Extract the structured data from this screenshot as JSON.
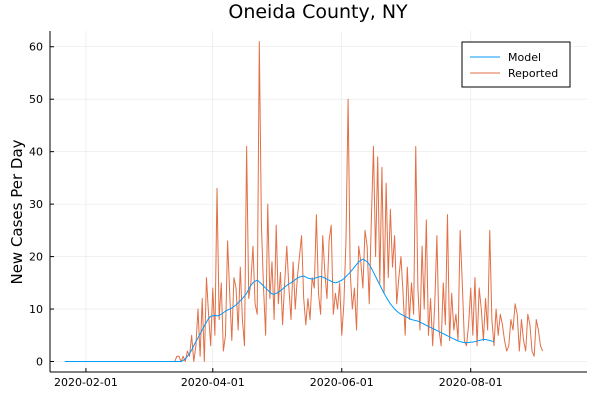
{
  "chart_data": {
    "type": "line",
    "title": "Oneida County, NY",
    "xlabel": "",
    "ylabel": "New Cases Per Day",
    "x_start": "2020-01-22",
    "xlim": [
      "2020-01-15",
      "2020-09-25"
    ],
    "ylim": [
      -2,
      63
    ],
    "grid": true,
    "legend_position": "top-right",
    "x_ticks": [
      {
        "date": "2020-02-01",
        "label": "2020-02-01"
      },
      {
        "date": "2020-04-01",
        "label": "2020-04-01"
      },
      {
        "date": "2020-06-01",
        "label": "2020-06-01"
      },
      {
        "date": "2020-08-01",
        "label": "2020-08-01"
      }
    ],
    "y_ticks": [
      0,
      10,
      20,
      30,
      40,
      50,
      60
    ],
    "series": [
      {
        "name": "Model",
        "color": "#009AFA",
        "values": [
          0,
          0,
          0,
          0,
          0,
          0,
          0,
          0,
          0,
          0,
          0,
          0,
          0,
          0,
          0,
          0,
          0,
          0,
          0,
          0,
          0,
          0,
          0,
          0,
          0,
          0,
          0,
          0,
          0,
          0,
          0,
          0,
          0,
          0,
          0,
          0,
          0,
          0,
          0,
          0,
          0,
          0,
          0,
          0,
          0,
          0,
          0,
          0,
          0,
          0,
          0,
          0,
          0,
          0,
          0,
          0,
          0.2,
          0.5,
          1,
          1.5,
          2.2,
          3,
          3.8,
          4.5,
          5.3,
          6,
          6.8,
          7.5,
          8.2,
          8.6,
          8.7,
          8.8,
          8.7,
          8.8,
          9,
          9.3,
          9.6,
          9.8,
          10,
          10.2,
          10.5,
          10.8,
          11.2,
          11.6,
          12,
          12.5,
          13,
          13.8,
          14.5,
          15,
          15.3,
          15.5,
          15.2,
          14.8,
          14.4,
          14,
          13.6,
          13.2,
          12.9,
          12.8,
          13,
          13.2,
          13.5,
          13.8,
          14.2,
          14.5,
          14.8,
          15,
          15.3,
          15.6,
          15.9,
          16.1,
          16.2,
          16.3,
          16.1,
          15.9,
          15.8,
          15.7,
          15.8,
          16,
          16.1,
          16.2,
          16.1,
          15.9,
          15.7,
          15.5,
          15.3,
          15.1,
          15,
          15.1,
          15.3,
          15.5,
          15.8,
          16.2,
          16.6,
          17,
          17.5,
          18,
          18.5,
          19,
          19.3,
          19.5,
          19.3,
          19,
          18.5,
          17.8,
          17,
          16.2,
          15.4,
          14.6,
          13.8,
          13,
          12.3,
          11.6,
          11,
          10.5,
          10,
          9.6,
          9.3,
          9,
          8.8,
          8.6,
          8.4,
          8.2,
          8,
          7.9,
          7.8,
          7.7,
          7.5,
          7.3,
          7.1,
          6.9,
          6.7,
          6.5,
          6.3,
          6.1,
          5.9,
          5.7,
          5.5,
          5.3,
          5.1,
          4.9,
          4.7,
          4.5,
          4.3,
          4.1,
          3.9,
          3.8,
          3.7,
          3.6,
          3.6,
          3.6,
          3.7,
          3.7,
          3.8,
          3.9,
          4,
          4.1,
          4.2,
          4.2,
          4.1,
          4,
          3.9,
          3.8
        ]
      },
      {
        "name": "Reported",
        "color": "#E26F46",
        "values": [
          0,
          0,
          0,
          0,
          0,
          0,
          0,
          0,
          0,
          0,
          0,
          0,
          0,
          0,
          0,
          0,
          0,
          0,
          0,
          0,
          0,
          0,
          0,
          0,
          0,
          0,
          0,
          0,
          0,
          0,
          0,
          0,
          0,
          0,
          0,
          0,
          0,
          0,
          0,
          0,
          0,
          0,
          0,
          0,
          0,
          0,
          0,
          0,
          0,
          0,
          0,
          0,
          0,
          1,
          1,
          0,
          1,
          0,
          2,
          1,
          5,
          0,
          3,
          10,
          1,
          12,
          0,
          16,
          9,
          3,
          14,
          5,
          33,
          8,
          15,
          2,
          5,
          23,
          13,
          4,
          16,
          14,
          6,
          18,
          8,
          3,
          41,
          12,
          15,
          22,
          11,
          9,
          61,
          26,
          14,
          5,
          30,
          12,
          19,
          8,
          26,
          11,
          17,
          7,
          15,
          22,
          14,
          8,
          19,
          10,
          16,
          20,
          24,
          12,
          7,
          12,
          8,
          16,
          14,
          28,
          13,
          9,
          24,
          17,
          12,
          23,
          26,
          9,
          13,
          10,
          15,
          5,
          11,
          23,
          50,
          17,
          10,
          14,
          6,
          22,
          19,
          14,
          25,
          22,
          11,
          27,
          41,
          20,
          39,
          15,
          37,
          13,
          34,
          16,
          29,
          18,
          24,
          11,
          16,
          20,
          13,
          5,
          18,
          8,
          15,
          9,
          41,
          14,
          6,
          22,
          10,
          27,
          5,
          12,
          3,
          11,
          24,
          6,
          3,
          15,
          7,
          28,
          4,
          13,
          6,
          9,
          4,
          25,
          15,
          4,
          3,
          7,
          14,
          5,
          16,
          3,
          14,
          10,
          4,
          12,
          6,
          25,
          8,
          3,
          10,
          5,
          9,
          7,
          4,
          2,
          3,
          8,
          6,
          11,
          9,
          2,
          8,
          4,
          2,
          9,
          7,
          2,
          1,
          8,
          6,
          3,
          2
        ]
      }
    ]
  }
}
